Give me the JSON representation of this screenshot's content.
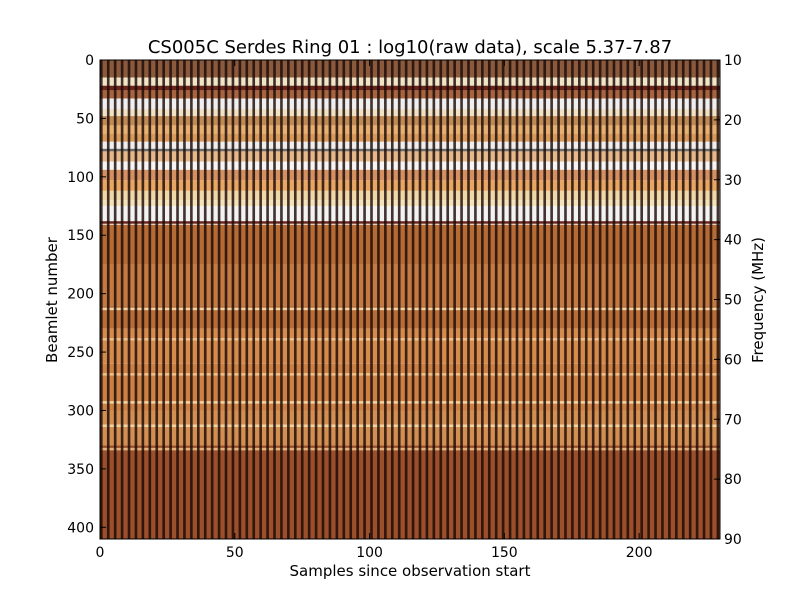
{
  "chart_data": {
    "type": "heatmap",
    "title": "CS005C Serdes Ring 01 : log10(raw data), scale 5.37-7.87",
    "xlabel": "Samples since observation start",
    "ylabel": "Beamlet number",
    "y2label": "Frequency (MHz)",
    "xlim": [
      0,
      230
    ],
    "ylim": [
      410,
      0
    ],
    "y2lim": [
      90,
      10
    ],
    "color_scale": [
      5.37,
      7.87
    ],
    "x_ticks": [
      0,
      50,
      100,
      150,
      200
    ],
    "y_ticks": [
      0,
      50,
      100,
      150,
      200,
      250,
      300,
      350,
      400
    ],
    "y2_ticks": [
      10,
      20,
      30,
      40,
      50,
      60,
      70,
      80,
      90
    ],
    "grid": false,
    "columns": {
      "period_samples": 2.57,
      "dark_color": "#1a0a08"
    },
    "beamlet_bands": [
      {
        "from": 0,
        "to": 15,
        "color": "#8b5a3c"
      },
      {
        "from": 15,
        "to": 22,
        "color": "#f2e4c6"
      },
      {
        "from": 22,
        "to": 26,
        "color": "#6b2418"
      },
      {
        "from": 26,
        "to": 33,
        "color": "#a8643f"
      },
      {
        "from": 33,
        "to": 42,
        "color": "#efefef"
      },
      {
        "from": 42,
        "to": 48,
        "color": "#f0e2c2"
      },
      {
        "from": 48,
        "to": 56,
        "color": "#c08a55"
      },
      {
        "from": 56,
        "to": 63,
        "color": "#e8b070"
      },
      {
        "from": 63,
        "to": 70,
        "color": "#d89a5a"
      },
      {
        "from": 70,
        "to": 78,
        "color": "#eeeeee"
      },
      {
        "from": 78,
        "to": 87,
        "color": "#e5b889"
      },
      {
        "from": 87,
        "to": 94,
        "color": "#f5f5f5"
      },
      {
        "from": 94,
        "to": 103,
        "color": "#d49060"
      },
      {
        "from": 103,
        "to": 112,
        "color": "#e8a662"
      },
      {
        "from": 112,
        "to": 120,
        "color": "#f0d7a8"
      },
      {
        "from": 120,
        "to": 125,
        "color": "#f4e2b8"
      },
      {
        "from": 125,
        "to": 141,
        "color": "#f3f3f3"
      },
      {
        "from": 141,
        "to": 175,
        "color": "#b66a34"
      },
      {
        "from": 175,
        "to": 210,
        "color": "#c47a40"
      },
      {
        "from": 210,
        "to": 230,
        "color": "#b86c36"
      },
      {
        "from": 230,
        "to": 260,
        "color": "#d58b4c"
      },
      {
        "from": 260,
        "to": 300,
        "color": "#cc8044"
      },
      {
        "from": 300,
        "to": 330,
        "color": "#d38f52"
      },
      {
        "from": 330,
        "to": 410,
        "color": "#9b4f2a"
      }
    ],
    "thin_beamlet_lines": [
      {
        "at": 76,
        "color": "#6b6b6b"
      },
      {
        "at": 138,
        "color": "#6b2418"
      },
      {
        "at": 212,
        "color": "#f4d2a0"
      },
      {
        "at": 238,
        "color": "#f0c08a"
      },
      {
        "at": 268,
        "color": "#f0c08a"
      },
      {
        "at": 292,
        "color": "#f4d2a0"
      },
      {
        "at": 312,
        "color": "#f4d2a0"
      },
      {
        "at": 332,
        "color": "#e6b07a"
      }
    ]
  }
}
